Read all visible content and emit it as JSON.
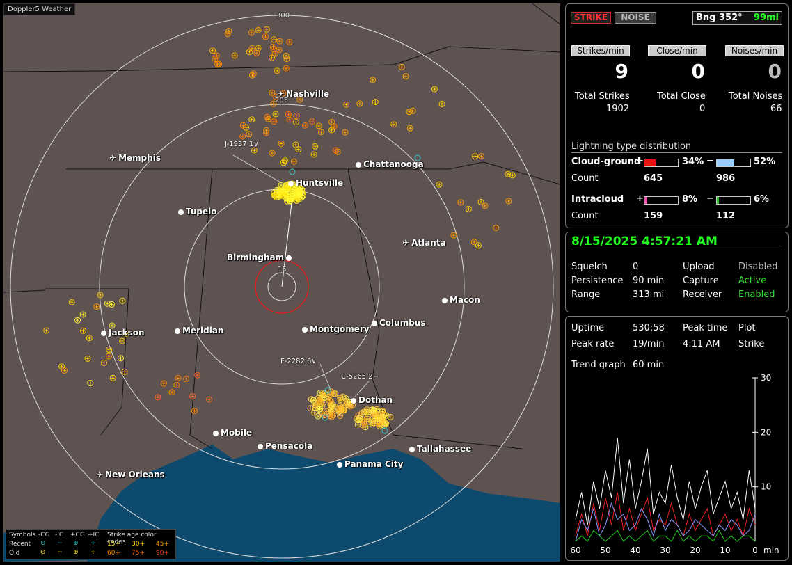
{
  "app": {
    "title": "Doppler5 Weather"
  },
  "map": {
    "ring_labels": [
      "300",
      "205",
      "15"
    ],
    "cities": [
      {
        "name": "Nashville",
        "kind": "airport"
      },
      {
        "name": "Memphis",
        "kind": "airport"
      },
      {
        "name": "Chattanooga",
        "kind": "city"
      },
      {
        "name": "Huntsville",
        "kind": "city"
      },
      {
        "name": "Tupelo",
        "kind": "city"
      },
      {
        "name": "Atlanta",
        "kind": "airport"
      },
      {
        "name": "Birmingham",
        "kind": "city"
      },
      {
        "name": "Macon",
        "kind": "city"
      },
      {
        "name": "Jackson",
        "kind": "city"
      },
      {
        "name": "Meridian",
        "kind": "city"
      },
      {
        "name": "Montgomery",
        "kind": "city"
      },
      {
        "name": "Columbus",
        "kind": "city"
      },
      {
        "name": "Dothan",
        "kind": "city"
      },
      {
        "name": "Mobile",
        "kind": "city"
      },
      {
        "name": "Pensacola",
        "kind": "city"
      },
      {
        "name": "Tallahassee",
        "kind": "city"
      },
      {
        "name": "Panama City",
        "kind": "city"
      },
      {
        "name": "New Orleans",
        "kind": "airport"
      }
    ],
    "storm_labels": [
      "J-1937  1∨",
      "F-2282  6∨",
      "C-5265  2−"
    ],
    "legend": {
      "symbols": "Symbols",
      "cols": [
        "-CG",
        "-IC",
        "+CG",
        "+IC"
      ],
      "age_title": "Strike age color codes",
      "recent": "Recent",
      "old": "Old",
      "recent_ages": [
        "15+",
        "30+",
        "45+"
      ],
      "old_ages": [
        "60+",
        "75+",
        "90+"
      ]
    }
  },
  "panel": {
    "strike_btn": "STRIKE",
    "noise_btn": "NOISE",
    "bearing": "Bng 352°",
    "distance": "99mi",
    "rates": {
      "labels": [
        "Strikes/min",
        "Close/min",
        "Noises/min"
      ],
      "values": [
        "9",
        "0",
        "0"
      ]
    },
    "totals": {
      "labels": [
        "Total Strikes",
        "Total Close",
        "Total Noises"
      ],
      "values": [
        "1902",
        "0",
        "66"
      ]
    },
    "distribution": {
      "title": "Lightning type distribution",
      "cloud_ground": "Cloud-ground",
      "intracloud": "Intracloud",
      "count_label": "Count",
      "plus": "+",
      "minus": "−",
      "cg_pos_pct": "34%",
      "cg_neg_pct": "52%",
      "ic_pos_pct": "8%",
      "ic_neg_pct": "6%",
      "cg_pos_count": "645",
      "cg_neg_count": "986",
      "ic_pos_count": "159",
      "ic_neg_count": "112",
      "cg_pos_frac": 0.34,
      "cg_neg_frac": 0.52,
      "ic_pos_frac": 0.08,
      "ic_neg_frac": 0.06
    },
    "status": {
      "datetime": "8/15/2025 4:57:21 AM",
      "squelch_label": "Squelch",
      "squelch": "0",
      "persistence_label": "Persistence",
      "persistence": "90 min",
      "range_label": "Range",
      "range": "313 mi",
      "upload_label": "Upload",
      "upload": "Disabled",
      "capture_label": "Capture",
      "capture": "Active",
      "receiver_label": "Receiver",
      "receiver": "Enabled"
    },
    "trend": {
      "uptime_label": "Uptime",
      "uptime": "530:58",
      "peak_time_label": "Peak time",
      "peak_time": "4:11 AM",
      "plot_label": "Plot",
      "plot": "Strike",
      "peak_rate_label": "Peak rate",
      "peak_rate": "19/min",
      "trend_label": "Trend graph",
      "trend_window": "60 min",
      "x_ticks": [
        "60",
        "50",
        "40",
        "30",
        "20",
        "10",
        "0"
      ],
      "x_unit": "min",
      "y_ticks": [
        "30",
        "20",
        "10"
      ]
    }
  },
  "chart_data": {
    "type": "line",
    "title": "",
    "xlabel": "min",
    "ylabel": "",
    "xlim": [
      60,
      0
    ],
    "ylim": [
      0,
      30
    ],
    "x": [
      60,
      58,
      56,
      54,
      52,
      50,
      48,
      46,
      44,
      42,
      40,
      38,
      36,
      34,
      32,
      30,
      28,
      26,
      24,
      22,
      20,
      18,
      16,
      14,
      12,
      10,
      8,
      6,
      4,
      2,
      0
    ],
    "series": [
      {
        "values": [
          4,
          9,
          3,
          11,
          6,
          13,
          8,
          19,
          7,
          15,
          6,
          11,
          17,
          5,
          9,
          7,
          14,
          8,
          4,
          11,
          6,
          10,
          13,
          5,
          8,
          11,
          6,
          9,
          4,
          13,
          6
        ]
      },
      {
        "values": [
          1,
          5,
          1,
          7,
          2,
          8,
          3,
          9,
          2,
          6,
          2,
          5,
          8,
          2,
          4,
          3,
          7,
          3,
          1,
          5,
          2,
          4,
          6,
          1,
          3,
          5,
          2,
          4,
          1,
          6,
          3
        ]
      },
      {
        "values": [
          0,
          4,
          2,
          6,
          1,
          3,
          7,
          4,
          5,
          2,
          3,
          6,
          4,
          1,
          5,
          2,
          4,
          3,
          1,
          2,
          4,
          3,
          2,
          1,
          3,
          2,
          4,
          3,
          1,
          2,
          5
        ]
      },
      {
        "values": [
          0,
          1,
          0,
          2,
          1,
          0,
          1,
          2,
          0,
          1,
          0,
          1,
          2,
          0,
          1,
          1,
          0,
          2,
          0,
          1,
          0,
          1,
          1,
          0,
          2,
          0,
          1,
          0,
          1,
          1,
          0
        ]
      }
    ],
    "colors": [
      "#ffffff",
      "#ee2222",
      "#8899ff",
      "#22cc22"
    ]
  }
}
